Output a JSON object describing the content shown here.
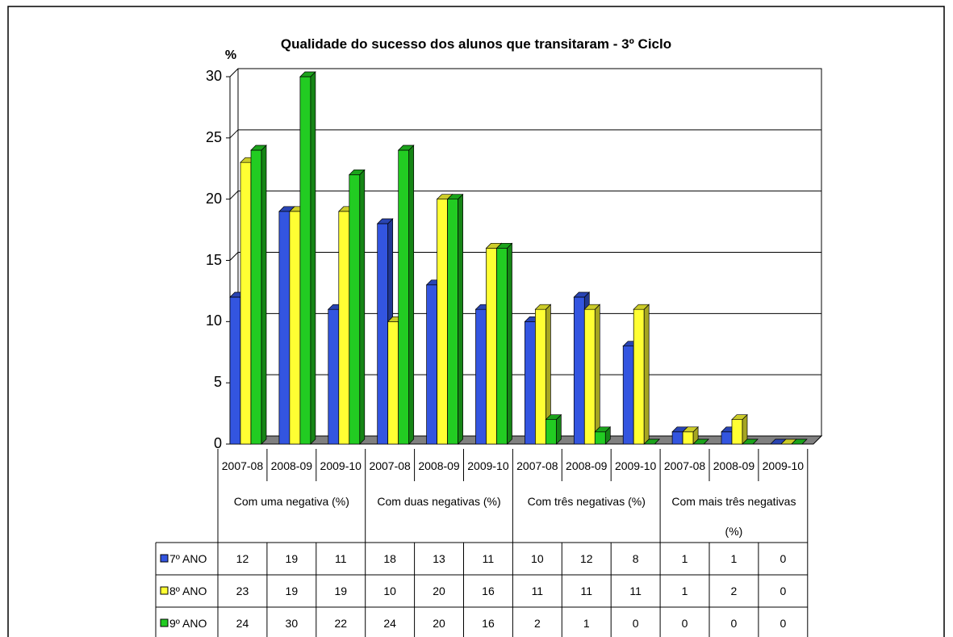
{
  "chart_data": {
    "type": "bar3d",
    "title": "Qualidade do sucesso dos alunos que transitaram - 3º Ciclo",
    "y_label": "%",
    "categories": [
      "2007-08",
      "2008-09",
      "2009-10",
      "2007-08",
      "2008-09",
      "2009-10",
      "2007-08",
      "2008-09",
      "2009-10",
      "2007-08",
      "2008-09",
      "2009-10"
    ],
    "groups": [
      "Com uma negativa (%)",
      "Com duas negativas  (%)",
      "Com três negativas  (%)",
      "Com mais três negativas (%)"
    ],
    "series": [
      {
        "name": "7º ANO",
        "color": "#3355e0",
        "values": [
          12,
          19,
          11,
          18,
          13,
          11,
          10,
          12,
          8,
          1,
          1,
          0
        ]
      },
      {
        "name": "8º ANO",
        "color": "#ffff33",
        "values": [
          23,
          19,
          19,
          10,
          20,
          16,
          11,
          11,
          11,
          1,
          2,
          0
        ]
      },
      {
        "name": "9º ANO",
        "color": "#22cc22",
        "values": [
          24,
          30,
          22,
          24,
          20,
          16,
          2,
          1,
          0,
          0,
          0,
          0
        ]
      }
    ],
    "ylim": [
      0,
      30
    ],
    "yticks": [
      0,
      5,
      10,
      15,
      20,
      25,
      30
    ],
    "grid": true,
    "data_table": true
  }
}
